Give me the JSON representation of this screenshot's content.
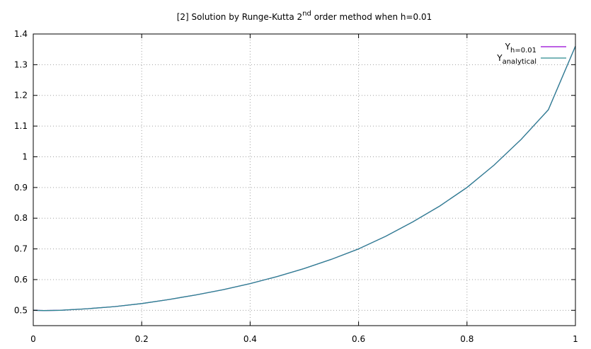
{
  "chart_data": {
    "type": "line",
    "title": {
      "prefix": "[2] Solution by Runge-Kutta 2",
      "sup": "nd",
      "suffix": " order method when h=0.01"
    },
    "xlim": [
      0,
      1
    ],
    "ylim": [
      0.45,
      1.4
    ],
    "xticks": [
      0,
      0.2,
      0.4,
      0.6,
      0.8,
      1
    ],
    "xtick_labels": [
      "0",
      "0.2",
      "0.4",
      "0.6",
      "0.8",
      "1"
    ],
    "yticks": [
      0.5,
      0.6,
      0.7,
      0.8,
      0.9,
      1.0,
      1.1,
      1.2,
      1.3,
      1.4
    ],
    "ytick_labels": [
      "0.5",
      "0.6",
      "0.7",
      "0.8",
      "0.9",
      "1",
      "1.1",
      "1.2",
      "1.3",
      "1.4"
    ],
    "grid": true,
    "legend_position": "top-right",
    "x": [
      0,
      0.02,
      0.05,
      0.1,
      0.15,
      0.2,
      0.25,
      0.3,
      0.35,
      0.4,
      0.45,
      0.5,
      0.55,
      0.6,
      0.65,
      0.7,
      0.75,
      0.8,
      0.85,
      0.9,
      0.95,
      1.0
    ],
    "series": [
      {
        "legend_main": "Y",
        "legend_sub": "h=0.01",
        "color": "#9400d3",
        "values": [
          0.5,
          0.499,
          0.5,
          0.505,
          0.512,
          0.522,
          0.535,
          0.55,
          0.567,
          0.587,
          0.61,
          0.636,
          0.666,
          0.7,
          0.741,
          0.788,
          0.84,
          0.9,
          0.973,
          1.057,
          1.153,
          1.36
        ]
      },
      {
        "legend_main": "Y",
        "legend_sub": "analytical",
        "color": "#2a8a8e",
        "values": [
          0.5,
          0.499,
          0.5,
          0.505,
          0.512,
          0.522,
          0.535,
          0.55,
          0.567,
          0.587,
          0.61,
          0.636,
          0.666,
          0.7,
          0.741,
          0.788,
          0.84,
          0.9,
          0.973,
          1.057,
          1.153,
          1.36
        ]
      }
    ]
  }
}
